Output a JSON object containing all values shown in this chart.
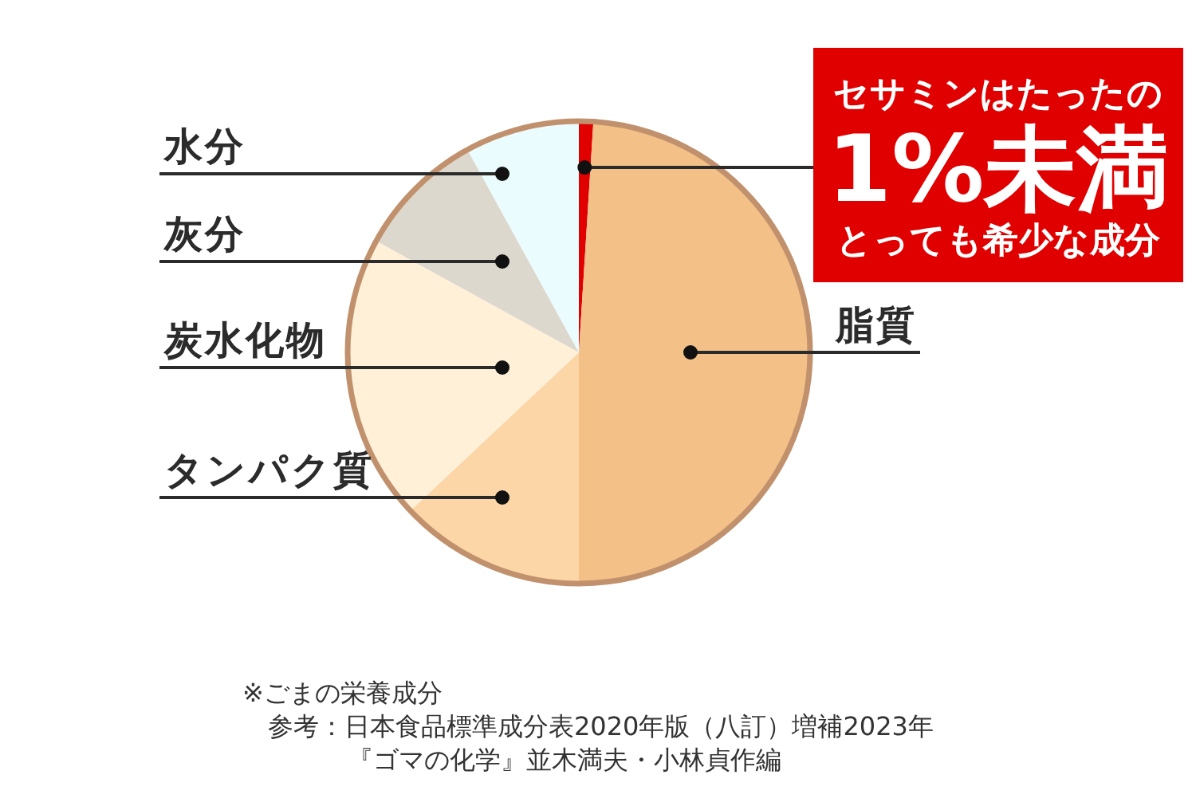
{
  "chart_data": {
    "type": "pie",
    "categories": [
      null,
      "脂質",
      "タンパク質",
      "炭水化物",
      "灰分",
      "水分"
    ],
    "values": [
      1,
      49,
      13,
      20,
      9,
      8
    ],
    "colors": [
      "#e00000",
      "#f3c087",
      "#fcd6a7",
      "#fff0d7",
      "#ddd8cd",
      "#eafcfd"
    ],
    "value_labels": [
      "1%未満",
      null,
      null,
      null,
      null,
      null
    ],
    "annotations": [
      "セサミンはたったの",
      "とっても希少な成分",
      "※ごまの栄養成分",
      "参考：日本食品標準成分表2020年版（八訂）増補2023年",
      "『ゴマの化学』並木満夫・小林貞作編"
    ]
  }
}
